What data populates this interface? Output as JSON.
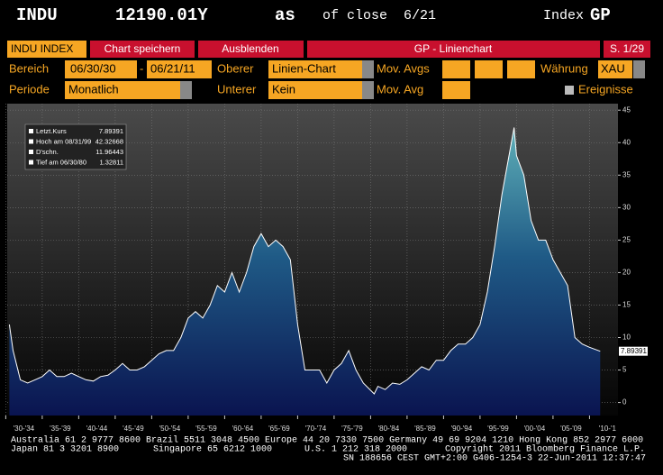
{
  "header": {
    "ticker": "INDU",
    "price": "12190.01Y",
    "as": "as",
    "of_close": "of close",
    "date": "6/21",
    "index": "Index",
    "function": "GP"
  },
  "toolbar": {
    "security": "INDU INDEX",
    "save": "Chart speichern",
    "hide": "Ausblenden",
    "title": "GP - Linienchart",
    "page": "S. 1/29"
  },
  "controls": {
    "range_label": "Bereich",
    "range_start": "06/30/30",
    "range_sep": "-",
    "range_end": "06/21/11",
    "upper_label": "Oberer",
    "upper_value": "Linien-Chart",
    "mov_avgs_label": "Mov. Avgs",
    "currency_label": "Währung",
    "currency_value": "XAU",
    "period_label": "Periode",
    "period_value": "Monatlich",
    "lower_label": "Unterer",
    "lower_value": "Kein",
    "mov_avg_label": "Mov. Avg",
    "events_label": "Ereignisse"
  },
  "chart_data": {
    "type": "area",
    "color": "#ffffff",
    "legend": [
      {
        "label": "Letzt.Kurs",
        "value": 7.89391
      },
      {
        "label": "Hoch am 08/31/99",
        "value": 42.32668
      },
      {
        "label": "D'schn.",
        "value": 11.96443
      },
      {
        "label": "Tief am 06/30/80",
        "value": 1.32811
      }
    ],
    "x": [
      1930.5,
      1931,
      1932,
      1933,
      1934,
      1935,
      1936,
      1937,
      1938,
      1939,
      1940,
      1941,
      1942,
      1943,
      1944,
      1945,
      1946,
      1947,
      1948,
      1949,
      1950,
      1951,
      1952,
      1953,
      1954,
      1955,
      1956,
      1957,
      1958,
      1959,
      1960,
      1961,
      1962,
      1963,
      1964,
      1965,
      1966,
      1967,
      1968,
      1969,
      1970,
      1971,
      1972,
      1973,
      1974,
      1975,
      1976,
      1977,
      1978,
      1979,
      1980.5,
      1981,
      1982,
      1983,
      1984,
      1985,
      1986,
      1987,
      1988,
      1989,
      1990,
      1991,
      1992,
      1993,
      1994,
      1995,
      1996,
      1997,
      1998,
      1999.67,
      2000,
      2001,
      2002,
      2003,
      2004,
      2005,
      2006,
      2007,
      2008,
      2009,
      2010,
      2011.47
    ],
    "values": [
      12,
      8,
      3.5,
      3,
      3.5,
      4,
      5,
      4,
      4,
      4.5,
      4,
      3.5,
      3.3,
      4,
      4.2,
      5,
      6,
      5,
      5,
      5.5,
      6.5,
      7.5,
      8,
      8,
      10,
      13,
      14,
      13,
      15,
      18,
      17,
      20,
      17,
      20,
      24,
      26,
      24,
      25,
      24,
      22,
      12,
      5,
      5,
      5,
      3,
      5,
      6,
      8,
      5,
      3,
      1.32811,
      2.5,
      2,
      3,
      2.8,
      3.5,
      4.5,
      5.5,
      5,
      6.5,
      6.5,
      8,
      9,
      9,
      10,
      12,
      17,
      24,
      32,
      42.32668,
      38,
      35,
      28,
      25,
      25,
      22,
      20,
      18,
      10,
      9,
      8.5,
      7.89391
    ],
    "xlim": [
      1930.2,
      2013.9
    ],
    "xticks": [
      {
        "value": 1930,
        "label": "'30-'34"
      },
      {
        "value": 1935,
        "label": "'35-'39"
      },
      {
        "value": 1940,
        "label": "'40-'44"
      },
      {
        "value": 1945,
        "label": "'45-'49"
      },
      {
        "value": 1950,
        "label": "'50-'54"
      },
      {
        "value": 1955,
        "label": "'55-'59"
      },
      {
        "value": 1960,
        "label": "'60-'64"
      },
      {
        "value": 1965,
        "label": "'65-'69"
      },
      {
        "value": 1970,
        "label": "'70-'74"
      },
      {
        "value": 1975,
        "label": "'75-'79"
      },
      {
        "value": 1980,
        "label": "'80-'84"
      },
      {
        "value": 1985,
        "label": "'85-'89"
      },
      {
        "value": 1990,
        "label": "'90-'94"
      },
      {
        "value": 1995,
        "label": "'95-'99"
      },
      {
        "value": 2000,
        "label": "'00-'04"
      },
      {
        "value": 2005,
        "label": "'05-'09"
      },
      {
        "value": 2010,
        "label": "'10-'1"
      }
    ],
    "ylim": [
      -2,
      46
    ],
    "yticks": [
      0,
      5,
      10,
      15,
      20,
      25,
      30,
      35,
      40,
      45
    ],
    "grid": true
  },
  "footer": {
    "line1": "Australia 61 2 9777 8600 Brazil 5511 3048 4500 Europe 44 20 7330 7500 Germany 49 69 9204 1210 Hong Kong 852 2977 6000",
    "japan": "Japan 81 3 3201 8900",
    "singapore": "Singapore 65 6212 1000",
    "us": "U.S. 1 212 318 2000",
    "copyright": "Copyright 2011 Bloomberg Finance L.P.",
    "line3": "SN 188656 CEST GMT+2:00 G406-1254-3 22-Jun-2011 12:37:47"
  }
}
